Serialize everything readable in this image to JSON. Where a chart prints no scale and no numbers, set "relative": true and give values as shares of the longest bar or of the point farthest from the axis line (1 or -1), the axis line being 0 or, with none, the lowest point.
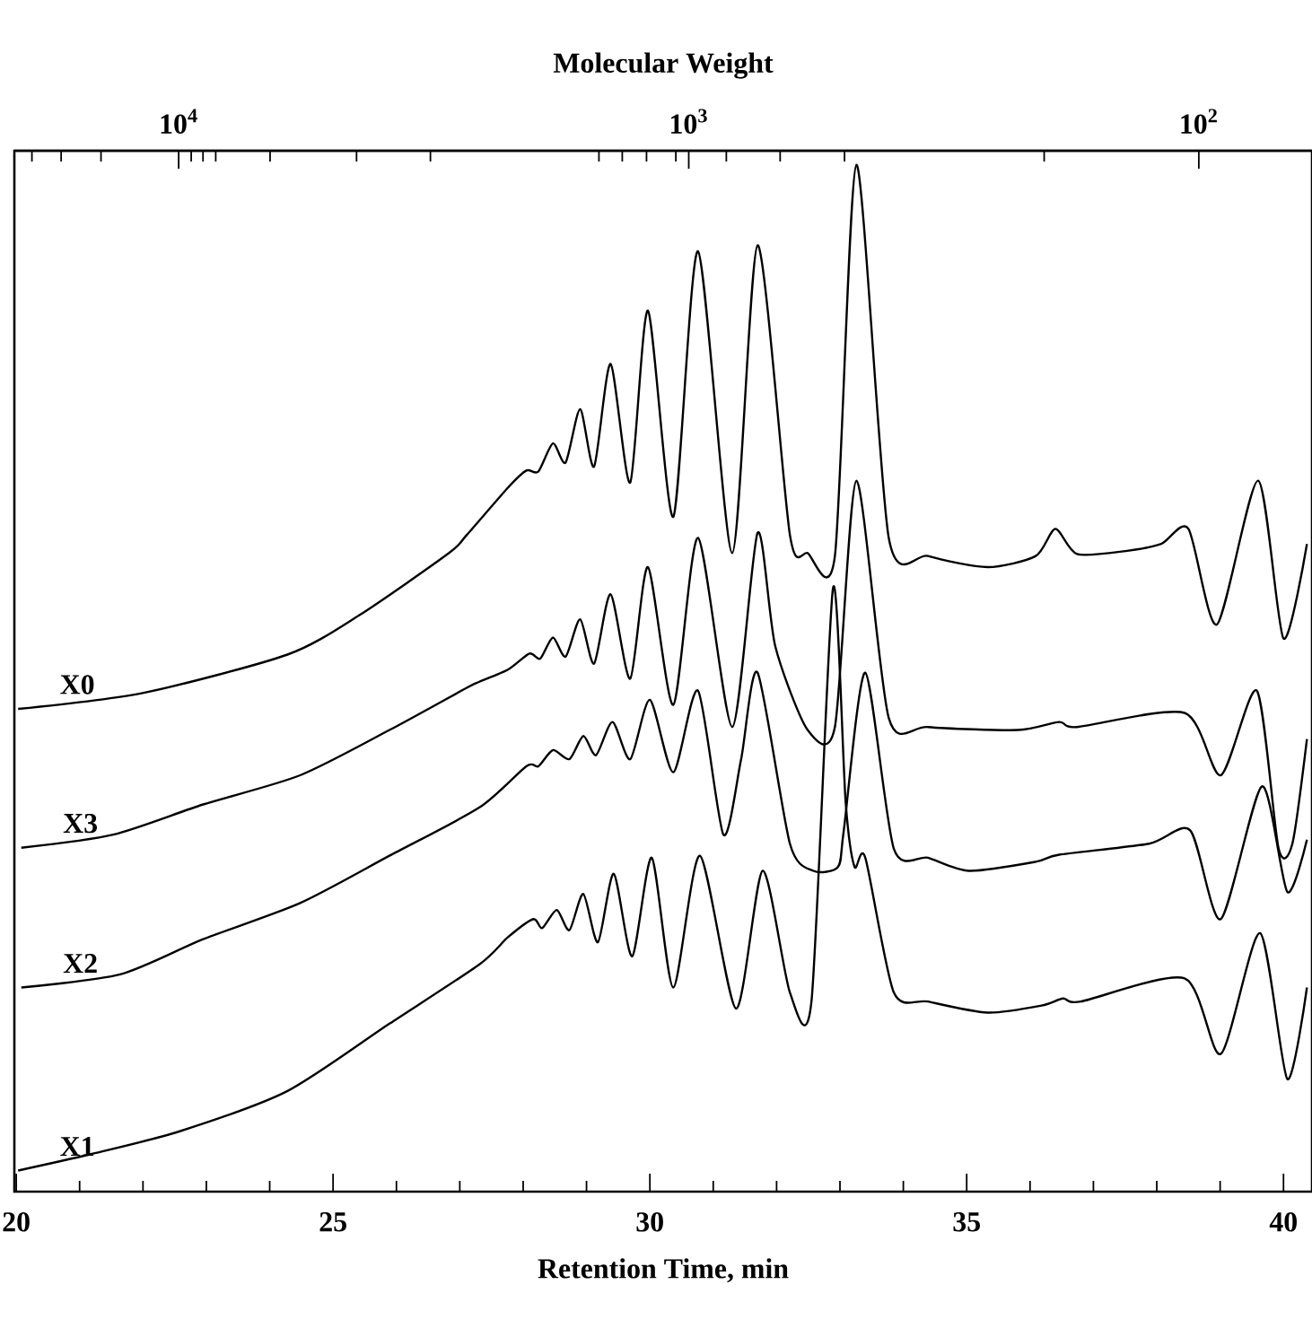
{
  "chart_data": {
    "type": "line",
    "relative": true,
    "xlabel": "Retention Time,  min",
    "x2label": "Molecular Weight",
    "xlim": [
      19.97,
      40.45
    ],
    "xticks": [
      20,
      {
        "value": 21,
        "label": null
      },
      {
        "value": 22,
        "label": null
      },
      {
        "value": 23,
        "label": null
      },
      {
        "value": 24,
        "label": null
      },
      25,
      {
        "value": 26,
        "label": null
      },
      {
        "value": 27,
        "label": null
      },
      {
        "value": 28,
        "label": null
      },
      {
        "value": 29,
        "label": null
      },
      30,
      {
        "value": 31,
        "label": null
      },
      {
        "value": 32,
        "label": null
      },
      {
        "value": 33,
        "label": null
      },
      {
        "value": 34,
        "label": null
      },
      35,
      {
        "value": 36,
        "label": null
      },
      {
        "value": 37,
        "label": null
      },
      {
        "value": 38,
        "label": null
      },
      {
        "value": 39,
        "label": null
      },
      40
    ],
    "log": "x2",
    "x2lim": [
      21000,
      60
    ],
    "x2ticks": [
      {
        "value": 19400,
        "label": null
      },
      {
        "value": 17000,
        "label": null
      },
      {
        "value": 14200,
        "label": null
      },
      {
        "value": 10000,
        "label": "10$^{4}$"
      },
      {
        "value": 9450,
        "label": null
      },
      {
        "value": 8960,
        "label": null
      },
      {
        "value": 8460,
        "label": null
      },
      {
        "value": 6620,
        "label": null
      },
      {
        "value": 4480,
        "label": null
      },
      {
        "value": 3210,
        "label": null
      },
      {
        "value": 1000,
        "label": "10$^{3}$"
      },
      {
        "value": 1500,
        "label": null
      },
      {
        "value": 1350,
        "label": null
      },
      {
        "value": 1210,
        "label": null
      },
      {
        "value": 1060,
        "label": null
      },
      {
        "value": 844,
        "label": null
      },
      {
        "value": 662,
        "label": null
      },
      {
        "value": 495,
        "label": null
      },
      {
        "value": 201,
        "label": null
      },
      {
        "value": 100,
        "label": "10$^{2}$"
      }
    ],
    "series": [
      {
        "name": "X0",
        "color": "#000000",
        "x": [
          20.03,
          22.01,
          24.28,
          25.41,
          26.83,
          27.11,
          27.76,
          28.05,
          28.24,
          28.47,
          28.67,
          28.9,
          29.12,
          29.38,
          29.69,
          29.97,
          30.37,
          30.76,
          31.3,
          31.7,
          32.21,
          32.49,
          32.92,
          33.26,
          33.77,
          34.39,
          35.33,
          36.09,
          36.4,
          36.74,
          37.51,
          38.07,
          38.5,
          38.95,
          39.6,
          40.0,
          40.37
        ],
        "values": [
          0.459,
          0.475,
          0.513,
          0.552,
          0.614,
          0.632,
          0.679,
          0.696,
          0.695,
          0.723,
          0.704,
          0.757,
          0.7,
          0.802,
          0.684,
          0.855,
          0.65,
          0.914,
          0.614,
          0.92,
          0.632,
          0.614,
          0.611,
          1.0,
          0.629,
          0.611,
          0.6,
          0.611,
          0.638,
          0.613,
          0.616,
          0.623,
          0.638,
          0.543,
          0.686,
          0.529,
          0.623
        ]
      },
      {
        "name": "X3",
        "color": "#000000",
        "x": [
          20.08,
          21.53,
          22.95,
          24.48,
          25.89,
          27.11,
          27.31,
          27.76,
          28.1,
          28.27,
          28.47,
          28.67,
          28.9,
          29.12,
          29.38,
          29.69,
          29.97,
          30.37,
          30.76,
          31.3,
          31.7,
          31.98,
          32.49,
          32.92,
          33.26,
          33.77,
          34.39,
          35.81,
          36.46,
          36.74,
          38.44,
          39.01,
          39.58,
          39.92,
          40.14,
          40.37
        ],
        "values": [
          0.321,
          0.334,
          0.364,
          0.393,
          0.438,
          0.48,
          0.486,
          0.498,
          0.514,
          0.509,
          0.53,
          0.511,
          0.548,
          0.504,
          0.573,
          0.489,
          0.6,
          0.463,
          0.629,
          0.441,
          0.634,
          0.521,
          0.438,
          0.441,
          0.686,
          0.45,
          0.441,
          0.438,
          0.446,
          0.441,
          0.455,
          0.393,
          0.477,
          0.321,
          0.325,
          0.429
        ]
      },
      {
        "name": "X2",
        "color": "#000000",
        "x": [
          20.08,
          21.64,
          22.95,
          24.48,
          25.89,
          27.31,
          28.05,
          28.24,
          28.47,
          28.73,
          28.95,
          29.15,
          29.41,
          29.69,
          30.0,
          30.37,
          30.76,
          31.16,
          31.44,
          31.7,
          32.21,
          32.58,
          32.97,
          33.06,
          33.4,
          33.85,
          34.39,
          35.04,
          36.09,
          36.46,
          37.88,
          38.53,
          39.01,
          39.66,
          40.06,
          40.37
        ],
        "values": [
          0.182,
          0.195,
          0.23,
          0.266,
          0.313,
          0.361,
          0.402,
          0.402,
          0.418,
          0.409,
          0.432,
          0.413,
          0.446,
          0.409,
          0.468,
          0.396,
          0.477,
          0.334,
          0.409,
          0.495,
          0.325,
          0.298,
          0.302,
          0.338,
          0.495,
          0.32,
          0.311,
          0.298,
          0.307,
          0.314,
          0.325,
          0.338,
          0.25,
          0.382,
          0.277,
          0.329
        ]
      },
      {
        "name": "X1",
        "color": "#000000",
        "x": [
          20.03,
          21.16,
          22.58,
          24.28,
          25.89,
          27.31,
          27.76,
          28.16,
          28.3,
          28.53,
          28.73,
          28.95,
          29.18,
          29.43,
          29.72,
          30.03,
          30.37,
          30.79,
          31.36,
          31.78,
          32.21,
          32.55,
          32.89,
          33.09,
          33.23,
          33.4,
          33.85,
          34.39,
          35.33,
          36.18,
          36.52,
          36.8,
          38.44,
          39.01,
          39.63,
          40.06,
          40.37
        ],
        "values": [
          0.0,
          0.016,
          0.039,
          0.079,
          0.146,
          0.205,
          0.232,
          0.25,
          0.241,
          0.259,
          0.239,
          0.275,
          0.227,
          0.295,
          0.213,
          0.311,
          0.182,
          0.313,
          0.161,
          0.298,
          0.177,
          0.168,
          0.579,
          0.366,
          0.302,
          0.311,
          0.177,
          0.168,
          0.157,
          0.164,
          0.171,
          0.168,
          0.191,
          0.116,
          0.236,
          0.091,
          0.182
        ]
      }
    ]
  }
}
